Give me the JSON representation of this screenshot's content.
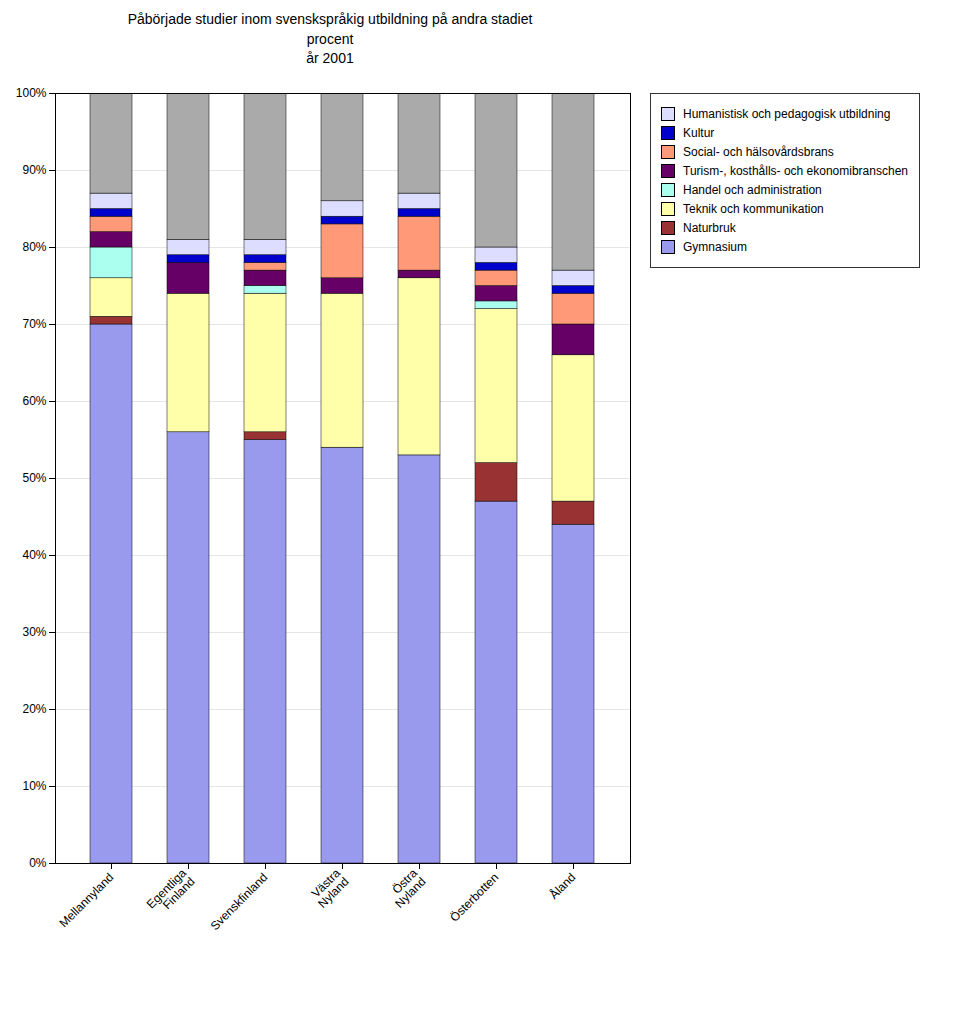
{
  "chart_data": {
    "type": "bar",
    "stacked": true,
    "title": "Påbörjade studier inom svenskspråkig utbildning på andra stadiet\nprocent\når 2001",
    "categories": [
      "Mellannyland",
      "Egentliga\nFinland",
      "Svenskfinland",
      "Västra\nNyland",
      "Östra\nNyland",
      "Österbotten",
      "Åland"
    ],
    "series": [
      {
        "name": "Gymnasium",
        "color": "#9999ee",
        "values": [
          70,
          56,
          55,
          54,
          53,
          47,
          44
        ]
      },
      {
        "name": "Naturbruk",
        "color": "#993333",
        "values": [
          1,
          0,
          1,
          0,
          0,
          5,
          3
        ]
      },
      {
        "name": "Teknik och kommunikation",
        "color": "#ffffaa",
        "values": [
          5,
          18,
          18,
          20,
          23,
          20,
          19
        ]
      },
      {
        "name": "Handel och administration",
        "color": "#aaffee",
        "values": [
          4,
          0,
          1,
          0,
          0,
          1,
          0
        ]
      },
      {
        "name": "Turism-, kosthålls- och ekonomibranschen",
        "color": "#660066",
        "values": [
          2,
          4,
          2,
          2,
          1,
          2,
          4
        ]
      },
      {
        "name": "Social- och hälsovårdsbrans",
        "color": "#ff9977",
        "values": [
          2,
          0,
          1,
          7,
          7,
          2,
          4
        ]
      },
      {
        "name": "Kultur",
        "color": "#0000cc",
        "values": [
          1,
          1,
          1,
          1,
          1,
          1,
          1
        ]
      },
      {
        "name": "Humanistisk och pedagogisk utbildning",
        "color": "#ddddff",
        "values": [
          2,
          2,
          2,
          2,
          2,
          2,
          2
        ]
      },
      {
        "color": "#aaaaaa",
        "values": [
          13,
          19,
          19,
          14,
          13,
          20,
          23
        ]
      }
    ],
    "ylim": [
      0,
      100
    ],
    "yticks": [
      {
        "value": 0,
        "label": "0%"
      },
      {
        "value": 10,
        "label": "10%"
      },
      {
        "value": 20,
        "label": "20%"
      },
      {
        "value": 30,
        "label": "30%"
      },
      {
        "value": 40,
        "label": "40%"
      },
      {
        "value": 50,
        "label": "50%"
      },
      {
        "value": 60,
        "label": "60%"
      },
      {
        "value": 70,
        "label": "70%"
      },
      {
        "value": 80,
        "label": "80%"
      },
      {
        "value": 90,
        "label": "90%"
      },
      {
        "value": 100,
        "label": "100%"
      }
    ],
    "grid": true,
    "legend": "right"
  }
}
